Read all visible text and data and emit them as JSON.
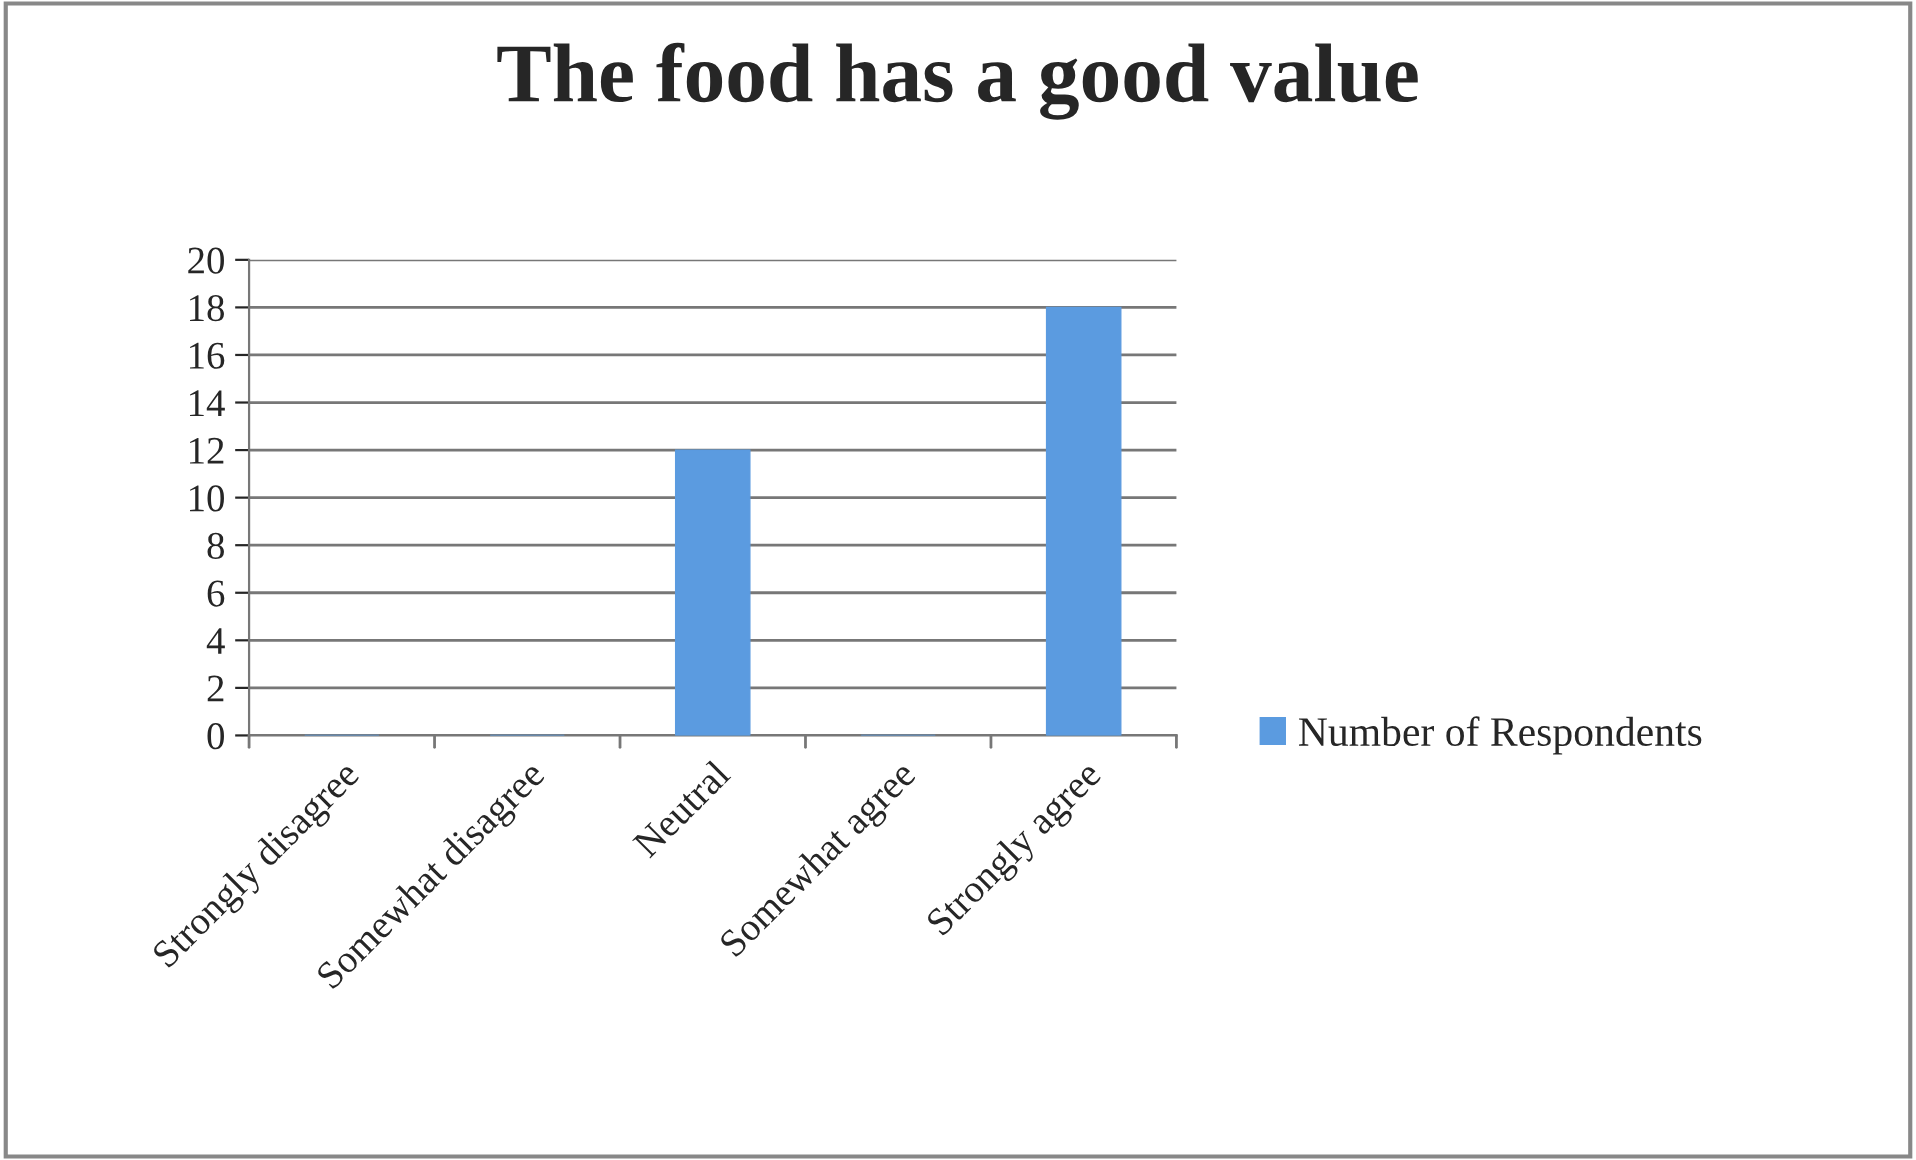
{
  "chart_data": {
    "type": "bar",
    "title": "The food has a good value",
    "categories": [
      "Strongly disagree",
      "Somewhat disagree",
      "Neutral",
      "Somewhat agree",
      "Strongly agree"
    ],
    "series": [
      {
        "name": "Number of Respondents",
        "color": "#5b9be0",
        "values": [
          0,
          0,
          12,
          0,
          18
        ]
      }
    ],
    "ylim": [
      0,
      20
    ],
    "yticks": [
      0,
      2,
      4,
      6,
      8,
      10,
      12,
      14,
      16,
      18,
      20
    ],
    "grid": "y",
    "legend": "right"
  }
}
